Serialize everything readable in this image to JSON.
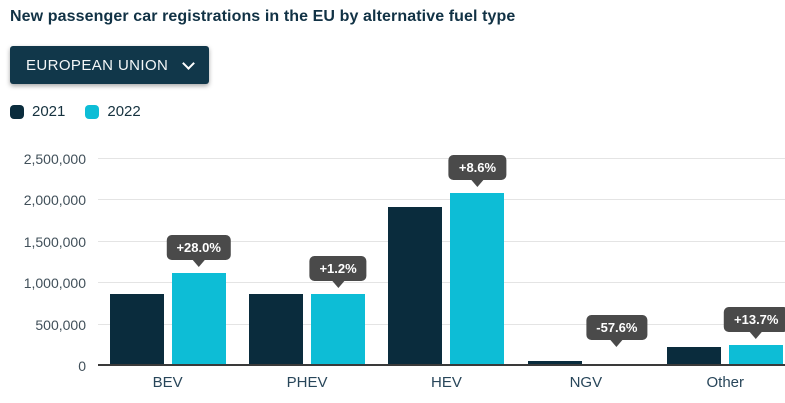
{
  "title": "New passenger car registrations in the EU by alternative fuel type",
  "region_dropdown": {
    "label": "EUROPEAN UNION"
  },
  "legend": [
    {
      "label": "2021",
      "color": "#0a2c3d"
    },
    {
      "label": "2022",
      "color": "#0dbdd6"
    }
  ],
  "colors": {
    "title": "#113245",
    "dropdown_bg": "#11374a",
    "bar_2021": "#0a2c3d",
    "bar_2022": "#0dbdd6",
    "tooltip_bg": "#4a4a4a",
    "gridline": "#e4e4e4",
    "axis_line": "#3a3a3a"
  },
  "chart_data": {
    "type": "bar",
    "title": "New passenger car registrations in the EU by alternative fuel type",
    "categories": [
      "BEV",
      "PHEV",
      "HEV",
      "NGV",
      "Other"
    ],
    "series": [
      {
        "name": "2021",
        "color": "#0a2c3d",
        "values": [
          875000,
          865000,
          1920000,
          62000,
          225000
        ]
      },
      {
        "name": "2022",
        "color": "#0dbdd6",
        "values": [
          1120000,
          875000,
          2085000,
          26000,
          256000
        ]
      }
    ],
    "change_labels": [
      "+28.0%",
      "+1.2%",
      "+8.6%",
      "-57.6%",
      "+13.7%"
    ],
    "yticks": [
      {
        "value": 0,
        "label": "0"
      },
      {
        "value": 500000,
        "label": "500,000"
      },
      {
        "value": 1000000,
        "label": "1,000,000"
      },
      {
        "value": 1500000,
        "label": "1,500,000"
      },
      {
        "value": 2000000,
        "label": "2,000,000"
      },
      {
        "value": 2500000,
        "label": "2,500,000"
      }
    ],
    "ylim": [
      0,
      2500000
    ],
    "xlabel": "",
    "ylabel": "",
    "grid": true,
    "legend_position": "top-left"
  }
}
